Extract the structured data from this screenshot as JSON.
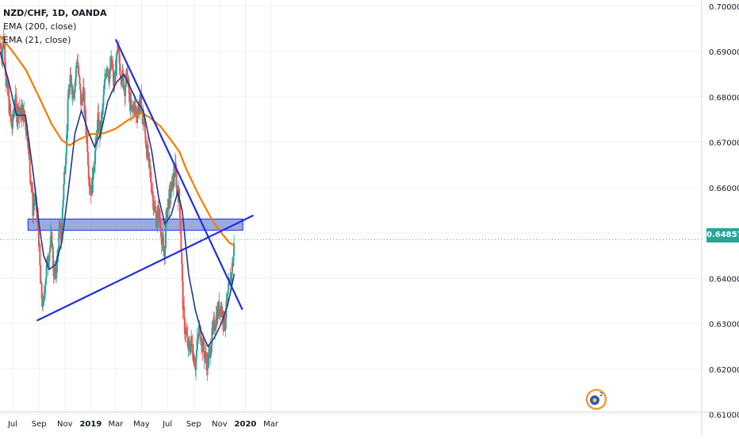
{
  "legend": {
    "ticker": "NZD/CHF, 1D, OANDA",
    "ema200": "EMA (200, close)",
    "ema21": "EMA (21, close)"
  },
  "colors": {
    "bull": "#26a69a",
    "bear": "#ef5350",
    "ema200": "#f57c00",
    "ema21": "#1e3a8a",
    "trendline": "#1f2de0",
    "zone_fill": "#7a8fd1",
    "zone_stroke": "#1f2de0",
    "price_line": "#26a69a",
    "grid": "#eef0f3"
  },
  "chart_data": {
    "type": "candlestick",
    "symbol": "NZD/CHF",
    "interval": "1D",
    "source": "OANDA",
    "ylim": [
      0.608,
      0.7005
    ],
    "y_ticks": [
      "0.70000",
      "0.69000",
      "0.68000",
      "0.67000",
      "0.66000",
      "0.65000",
      "0.64000",
      "0.63000",
      "0.62000",
      "0.61000"
    ],
    "x_ticks": [
      "Jul",
      "Sep",
      "Nov",
      "2019",
      "Mar",
      "May",
      "Jul",
      "Sep",
      "Nov",
      "2020",
      "Mar"
    ],
    "last_price": "0.64857",
    "price_series": [
      [
        "2018-06-01",
        0.692
      ],
      [
        "2018-06-05",
        0.689
      ],
      [
        "2018-06-08",
        0.693
      ],
      [
        "2018-06-12",
        0.691
      ],
      [
        "2018-06-15",
        0.684
      ],
      [
        "2018-06-20",
        0.68
      ],
      [
        "2018-06-25",
        0.676
      ],
      [
        "2018-06-29",
        0.673
      ],
      [
        "2018-07-03",
        0.676
      ],
      [
        "2018-07-06",
        0.68
      ],
      [
        "2018-07-11",
        0.676
      ],
      [
        "2018-07-16",
        0.678
      ],
      [
        "2018-07-20",
        0.676
      ],
      [
        "2018-07-25",
        0.677
      ],
      [
        "2018-07-31",
        0.674
      ],
      [
        "2018-08-06",
        0.671
      ],
      [
        "2018-08-10",
        0.664
      ],
      [
        "2018-08-15",
        0.66
      ],
      [
        "2018-08-17",
        0.655
      ],
      [
        "2018-08-22",
        0.658
      ],
      [
        "2018-08-27",
        0.654
      ],
      [
        "2018-08-31",
        0.65
      ],
      [
        "2018-09-05",
        0.638
      ],
      [
        "2018-09-11",
        0.633
      ],
      [
        "2018-09-14",
        0.638
      ],
      [
        "2018-09-20",
        0.643
      ],
      [
        "2018-09-25",
        0.646
      ],
      [
        "2018-10-01",
        0.649
      ],
      [
        "2018-10-05",
        0.642
      ],
      [
        "2018-10-09",
        0.64
      ],
      [
        "2018-10-15",
        0.645
      ],
      [
        "2018-10-19",
        0.651
      ],
      [
        "2018-10-24",
        0.649
      ],
      [
        "2018-10-26",
        0.655
      ],
      [
        "2018-11-01",
        0.665
      ],
      [
        "2018-11-06",
        0.672
      ],
      [
        "2018-11-09",
        0.68
      ],
      [
        "2018-11-15",
        0.684
      ],
      [
        "2018-11-20",
        0.681
      ],
      [
        "2018-11-26",
        0.684
      ],
      [
        "2018-11-30",
        0.689
      ],
      [
        "2018-12-05",
        0.683
      ],
      [
        "2018-12-10",
        0.678
      ],
      [
        "2018-12-14",
        0.682
      ],
      [
        "2018-12-19",
        0.675
      ],
      [
        "2018-12-24",
        0.67
      ],
      [
        "2018-12-28",
        0.662
      ],
      [
        "2019-01-03",
        0.659
      ],
      [
        "2019-01-08",
        0.665
      ],
      [
        "2019-01-14",
        0.67
      ],
      [
        "2019-01-18",
        0.675
      ],
      [
        "2019-01-23",
        0.672
      ],
      [
        "2019-01-29",
        0.677
      ],
      [
        "2019-02-04",
        0.684
      ],
      [
        "2019-02-08",
        0.688
      ],
      [
        "2019-02-14",
        0.684
      ],
      [
        "2019-02-19",
        0.688
      ],
      [
        "2019-02-25",
        0.682
      ],
      [
        "2019-03-01",
        0.686
      ],
      [
        "2019-03-06",
        0.69
      ],
      [
        "2019-03-12",
        0.686
      ],
      [
        "2019-03-18",
        0.684
      ],
      [
        "2019-03-22",
        0.682
      ],
      [
        "2019-03-28",
        0.685
      ],
      [
        "2019-04-03",
        0.679
      ],
      [
        "2019-04-09",
        0.676
      ],
      [
        "2019-04-12",
        0.679
      ],
      [
        "2019-04-18",
        0.676
      ],
      [
        "2019-04-24",
        0.678
      ],
      [
        "2019-04-30",
        0.679
      ],
      [
        "2019-05-03",
        0.676
      ],
      [
        "2019-05-09",
        0.672
      ],
      [
        "2019-05-14",
        0.668
      ],
      [
        "2019-05-20",
        0.664
      ],
      [
        "2019-05-24",
        0.661
      ],
      [
        "2019-05-30",
        0.656
      ],
      [
        "2019-06-05",
        0.653
      ],
      [
        "2019-06-10",
        0.655
      ],
      [
        "2019-06-14",
        0.652
      ],
      [
        "2019-06-19",
        0.648
      ],
      [
        "2019-06-24",
        0.644
      ],
      [
        "2019-06-27",
        0.652
      ],
      [
        "2019-07-03",
        0.657
      ],
      [
        "2019-07-09",
        0.659
      ],
      [
        "2019-07-15",
        0.662
      ],
      [
        "2019-07-19",
        0.664
      ],
      [
        "2019-07-24",
        0.66
      ],
      [
        "2019-07-30",
        0.657
      ],
      [
        "2019-08-02",
        0.648
      ],
      [
        "2019-08-06",
        0.636
      ],
      [
        "2019-08-09",
        0.63
      ],
      [
        "2019-08-14",
        0.628
      ],
      [
        "2019-08-20",
        0.624
      ],
      [
        "2019-08-26",
        0.626
      ],
      [
        "2019-08-30",
        0.624
      ],
      [
        "2019-09-05",
        0.621
      ],
      [
        "2019-09-11",
        0.627
      ],
      [
        "2019-09-16",
        0.629
      ],
      [
        "2019-09-20",
        0.626
      ],
      [
        "2019-09-25",
        0.624
      ],
      [
        "2019-09-30",
        0.622
      ],
      [
        "2019-10-04",
        0.621
      ],
      [
        "2019-10-09",
        0.624
      ],
      [
        "2019-10-14",
        0.627
      ],
      [
        "2019-10-18",
        0.629
      ],
      [
        "2019-10-23",
        0.631
      ],
      [
        "2019-10-29",
        0.633
      ],
      [
        "2019-11-04",
        0.634
      ],
      [
        "2019-11-08",
        0.632
      ],
      [
        "2019-11-13",
        0.63
      ],
      [
        "2019-11-18",
        0.634
      ],
      [
        "2019-11-22",
        0.637
      ],
      [
        "2019-11-27",
        0.64
      ],
      [
        "2019-12-03",
        0.644
      ],
      [
        "2019-12-06",
        0.6486
      ]
    ],
    "ema200": [
      [
        "2018-06-01",
        0.6935
      ],
      [
        "2018-07-01",
        0.69
      ],
      [
        "2018-08-01",
        0.686
      ],
      [
        "2018-09-01",
        0.68
      ],
      [
        "2018-10-01",
        0.674
      ],
      [
        "2018-10-25",
        0.6705
      ],
      [
        "2018-11-12",
        0.6693
      ],
      [
        "2018-12-01",
        0.6705
      ],
      [
        "2019-01-01",
        0.6718
      ],
      [
        "2019-02-01",
        0.672
      ],
      [
        "2019-03-01",
        0.673
      ],
      [
        "2019-04-01",
        0.675
      ],
      [
        "2019-05-01",
        0.6765
      ],
      [
        "2019-05-20",
        0.6755
      ],
      [
        "2019-06-15",
        0.6735
      ],
      [
        "2019-07-15",
        0.6698
      ],
      [
        "2019-07-30",
        0.6678
      ],
      [
        "2019-08-15",
        0.664
      ],
      [
        "2019-09-15",
        0.658
      ],
      [
        "2019-10-15",
        0.6528
      ],
      [
        "2019-11-10",
        0.6495
      ],
      [
        "2019-11-25",
        0.6478
      ],
      [
        "2019-12-06",
        0.6473
      ]
    ],
    "ema21": [
      [
        "2018-06-01",
        0.69
      ],
      [
        "2018-06-20",
        0.684
      ],
      [
        "2018-07-10",
        0.676
      ],
      [
        "2018-07-31",
        0.676
      ],
      [
        "2018-08-20",
        0.662
      ],
      [
        "2018-09-01",
        0.652
      ],
      [
        "2018-09-12",
        0.645
      ],
      [
        "2018-09-25",
        0.642
      ],
      [
        "2018-10-10",
        0.643
      ],
      [
        "2018-10-25",
        0.648
      ],
      [
        "2018-11-10",
        0.66
      ],
      [
        "2018-11-25",
        0.672
      ],
      [
        "2018-12-10",
        0.677
      ],
      [
        "2018-12-28",
        0.672
      ],
      [
        "2019-01-10",
        0.669
      ],
      [
        "2019-01-25",
        0.672
      ],
      [
        "2019-02-10",
        0.679
      ],
      [
        "2019-03-01",
        0.683
      ],
      [
        "2019-03-20",
        0.685
      ],
      [
        "2019-04-05",
        0.682
      ],
      [
        "2019-04-20",
        0.679
      ],
      [
        "2019-05-05",
        0.677
      ],
      [
        "2019-05-25",
        0.668
      ],
      [
        "2019-06-10",
        0.658
      ],
      [
        "2019-06-25",
        0.652
      ],
      [
        "2019-07-10",
        0.654
      ],
      [
        "2019-07-25",
        0.659
      ],
      [
        "2019-08-05",
        0.655
      ],
      [
        "2019-08-20",
        0.641
      ],
      [
        "2019-09-05",
        0.633
      ],
      [
        "2019-09-20",
        0.628
      ],
      [
        "2019-10-05",
        0.625
      ],
      [
        "2019-10-20",
        0.627
      ],
      [
        "2019-11-05",
        0.63
      ],
      [
        "2019-11-20",
        0.634
      ],
      [
        "2019-12-06",
        0.641
      ]
    ],
    "support_zone": {
      "x_start": "2018-08-06",
      "x_end": "2019-12-26",
      "y_low": 0.6506,
      "y_high": 0.6531
    },
    "trendlines": [
      {
        "name": "rising support",
        "p1": [
          "2018-08-27",
          0.6307
        ],
        "p2": [
          "2020-01-20",
          0.6539
        ]
      },
      {
        "name": "falling resistance",
        "p1": [
          "2019-03-01",
          0.6927
        ],
        "p2": [
          "2019-12-25",
          0.6331
        ]
      }
    ]
  },
  "watermark": {
    "icon": "tradingview-logo-icon"
  }
}
